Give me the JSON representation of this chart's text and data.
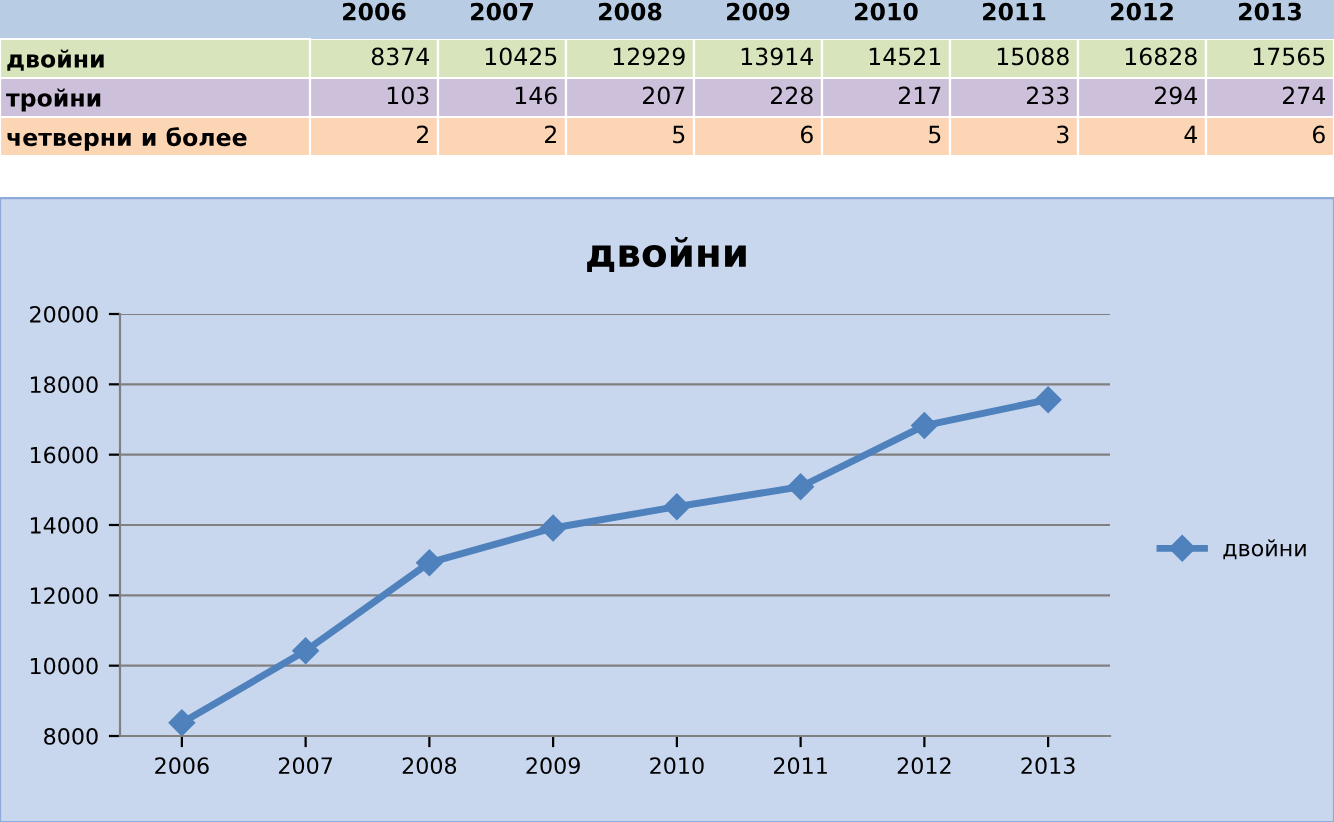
{
  "chart_data": [
    {
      "type": "heatmap",
      "categories": [
        "2006",
        "2007",
        "2008",
        "2009",
        "2010",
        "2011",
        "2012",
        "2013"
      ],
      "y_categories": [
        "двойни",
        "тройни",
        "четверни и более"
      ],
      "cells": [
        [
          8374,
          10425,
          12929,
          13914,
          14521,
          15088,
          16828,
          17565
        ],
        [
          103,
          146,
          207,
          228,
          217,
          233,
          294,
          274
        ],
        [
          2,
          2,
          5,
          6,
          5,
          3,
          4,
          6
        ]
      ],
      "cell_labels": [
        [
          "8374",
          "10425",
          "12929",
          "13914",
          "14521",
          "15088",
          "16828",
          "17565"
        ],
        [
          "103",
          "146",
          "207",
          "228",
          "217",
          "233",
          "294",
          "274"
        ],
        [
          "2",
          "2",
          "5",
          "6",
          "5",
          "3",
          "4",
          "6"
        ]
      ]
    },
    {
      "type": "line",
      "title": "двойни",
      "categories": [
        "2006",
        "2007",
        "2008",
        "2009",
        "2010",
        "2011",
        "2012",
        "2013"
      ],
      "series": [
        {
          "name": "двойни",
          "color": "#4f81bd",
          "values": [
            8374,
            10425,
            12929,
            13914,
            14521,
            15088,
            16828,
            17565
          ]
        }
      ],
      "ylim": [
        8000,
        20000
      ],
      "yticks": [
        8000,
        10000,
        12000,
        14000,
        16000,
        18000,
        20000
      ],
      "grid": "y",
      "legend": "right",
      "marker": "diamond",
      "line_style": "solid"
    }
  ]
}
